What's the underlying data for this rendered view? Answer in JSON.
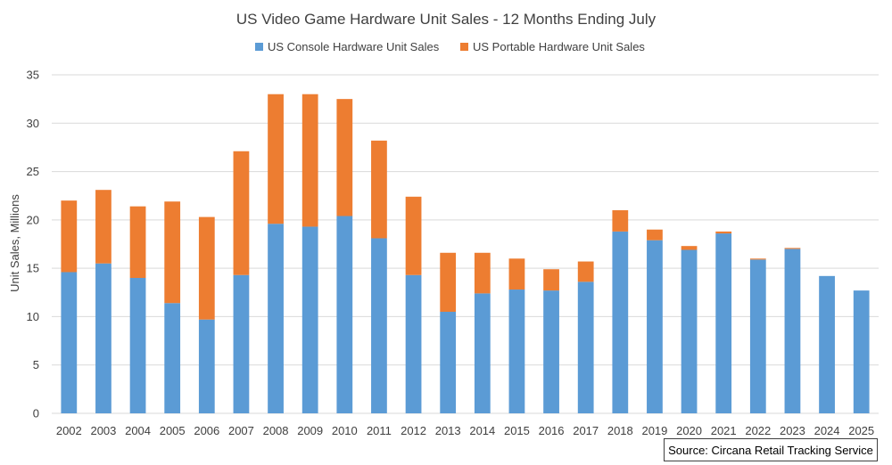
{
  "chart_data": {
    "type": "bar",
    "stacked": true,
    "title": "US Video Game Hardware Unit Sales - 12 Months Ending July",
    "xlabel": "",
    "ylabel": "Unit Sales, Millions",
    "ylim": [
      0,
      35
    ],
    "yticks": [
      0,
      5,
      10,
      15,
      20,
      25,
      30,
      35
    ],
    "grid": true,
    "legend_position": "top",
    "categories": [
      "2002",
      "2003",
      "2004",
      "2005",
      "2006",
      "2007",
      "2008",
      "2009",
      "2010",
      "2011",
      "2012",
      "2013",
      "2014",
      "2015",
      "2016",
      "2017",
      "2018",
      "2019",
      "2020",
      "2021",
      "2022",
      "2023",
      "2024",
      "2025"
    ],
    "series": [
      {
        "name": "US Console Hardware Unit Sales",
        "color": "#5b9bd5",
        "values": [
          14.6,
          15.5,
          14.0,
          11.4,
          9.7,
          14.3,
          19.6,
          19.3,
          20.4,
          18.1,
          14.3,
          10.5,
          12.4,
          12.8,
          12.7,
          13.6,
          18.8,
          17.9,
          16.9,
          18.6,
          15.9,
          17.0,
          14.2,
          12.7
        ]
      },
      {
        "name": "US Portable Hardware Unit Sales",
        "color": "#ed7d31",
        "values": [
          7.4,
          7.6,
          7.4,
          10.5,
          10.6,
          12.8,
          13.4,
          13.7,
          12.1,
          10.1,
          8.1,
          6.1,
          4.2,
          3.2,
          2.2,
          2.1,
          2.2,
          1.1,
          0.4,
          0.2,
          0.1,
          0.1,
          0.0,
          0.0
        ]
      }
    ]
  },
  "source": "Source: Circana Retail Tracking Service"
}
